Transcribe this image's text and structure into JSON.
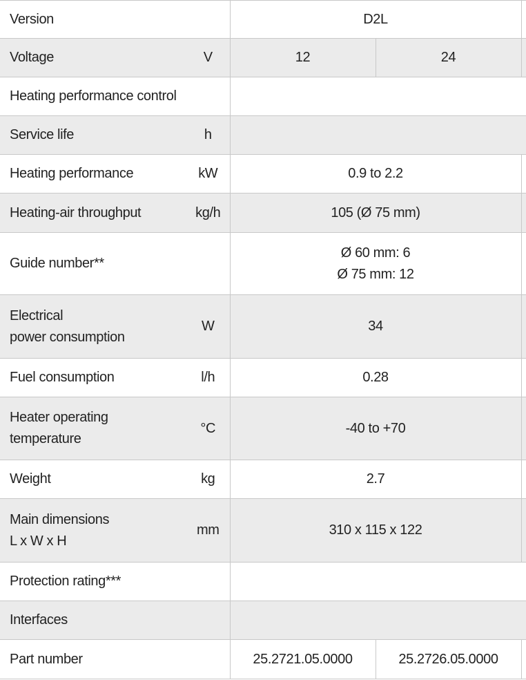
{
  "table": {
    "rows": [
      {
        "label": "Version",
        "values": [
          "D2L"
        ]
      },
      {
        "label": "Voltage",
        "unit": "V",
        "values": [
          "12",
          "24"
        ]
      },
      {
        "label": "Heating performance control",
        "values": []
      },
      {
        "label": "Service life",
        "unit": "h",
        "values": []
      },
      {
        "label": "Heating performance",
        "unit": "kW",
        "values": [
          "0.9 to 2.2"
        ]
      },
      {
        "label": "Heating-air throughput",
        "unit": "kg/h",
        "values": [
          "105 (Ø 75 mm)"
        ]
      },
      {
        "label": "Guide number**",
        "values": [
          "Ø 60 mm:  6\nØ 75 mm: 12"
        ]
      },
      {
        "label": "Electrical\npower consumption",
        "unit": "W",
        "values": [
          "34"
        ]
      },
      {
        "label": "Fuel consumption",
        "unit": "l/h",
        "values": [
          "0.28"
        ]
      },
      {
        "label": "Heater operating\ntemperature",
        "unit": "°C",
        "values": [
          "-40 to +70"
        ]
      },
      {
        "label": "Weight",
        "unit": "kg",
        "values": [
          "2.7"
        ]
      },
      {
        "label": "Main dimensions\nL x W x H",
        "unit": "mm",
        "values": [
          "310 x 115 x 122"
        ]
      },
      {
        "label": "Protection rating***",
        "values": []
      },
      {
        "label": "Interfaces",
        "values": []
      },
      {
        "label": "Part number",
        "values": [
          "25.2721.05.0000",
          "25.2726.05.0000"
        ]
      }
    ]
  }
}
